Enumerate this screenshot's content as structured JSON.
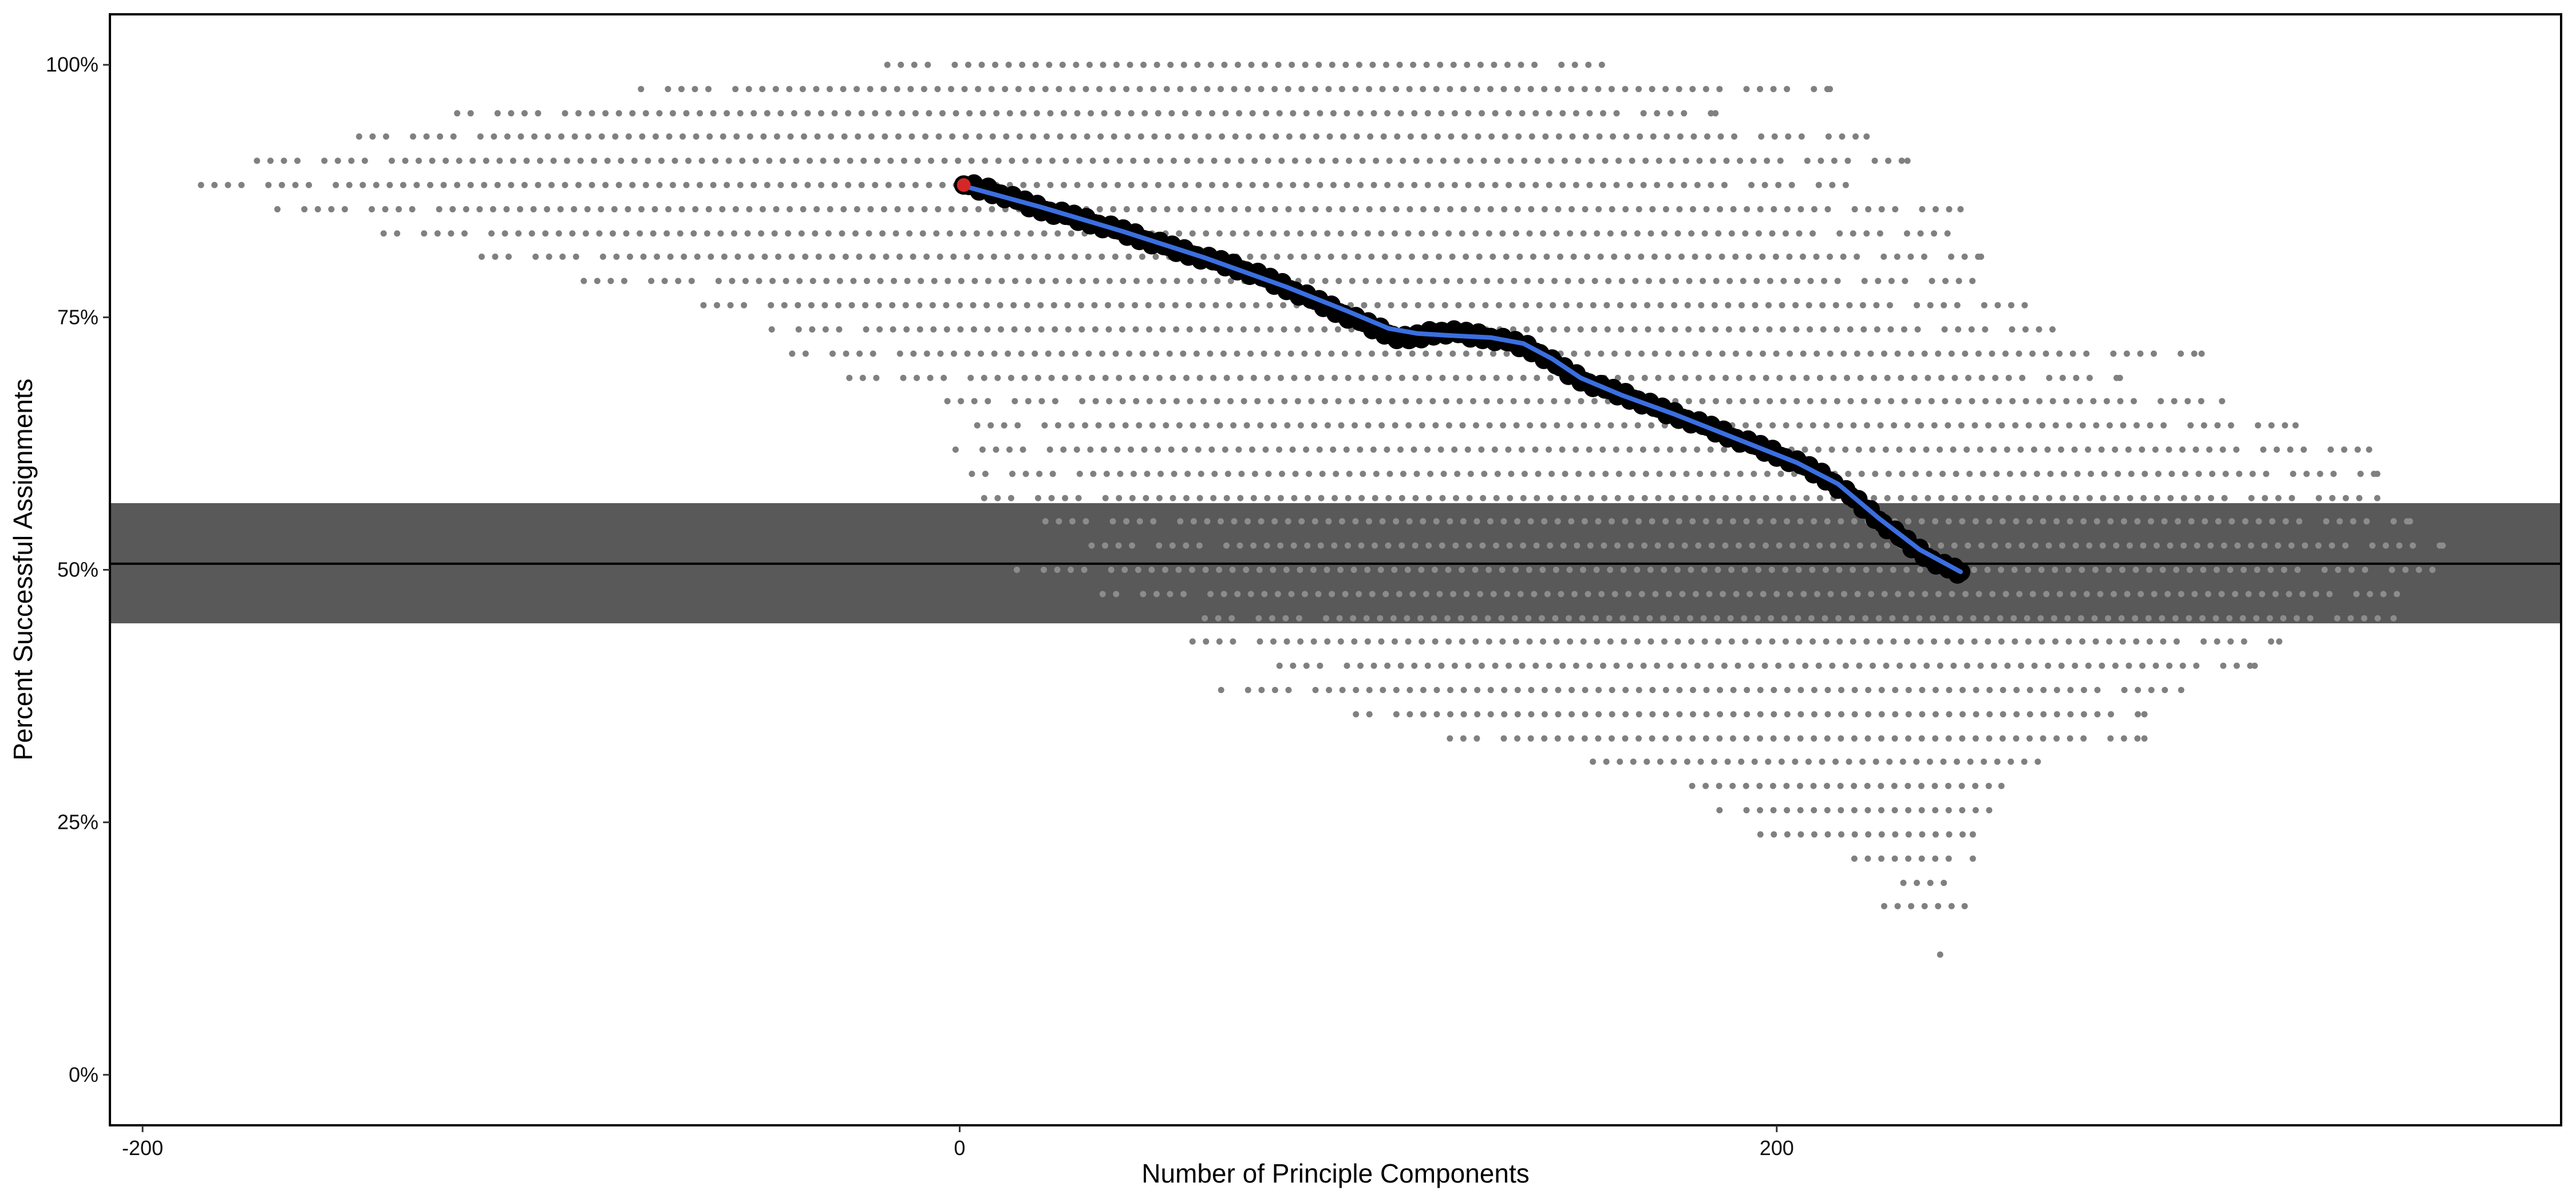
{
  "chart_data": {
    "type": "scatter",
    "xlabel": "Number of Principle Components",
    "ylabel": "Percent Successful Assignments",
    "xlim": [
      -208,
      392
    ],
    "ylim": [
      -5,
      105
    ],
    "x_ticks": [
      -200,
      0,
      200
    ],
    "x_tick_labels": [
      "-200",
      "0",
      "200"
    ],
    "y_ticks": [
      0,
      25,
      50,
      75,
      100
    ],
    "y_tick_labels": [
      "0%",
      "25%",
      "50%",
      "75%",
      "100%"
    ],
    "grid": false,
    "legend": "none",
    "reference_line": {
      "y": 50.6,
      "band": [
        44.7,
        56.6
      ],
      "band_color": "#595959",
      "line_color": "#000000"
    },
    "colors": {
      "background_dots": "#808080",
      "background_dots_in_band": "#8c8c8c",
      "path_points": "#000000",
      "smooth_line": "#3b6fe0",
      "start_point": "#d62728"
    },
    "background_rows": [
      {
        "y": 100,
        "xmin": -21,
        "xmax": 159
      },
      {
        "y": 97.6,
        "xmin": -78,
        "xmax": 213
      },
      {
        "y": 95.2,
        "xmin": -123,
        "xmax": 185
      },
      {
        "y": 92.9,
        "xmin": -147,
        "xmax": 222
      },
      {
        "y": 90.5,
        "xmin": -172,
        "xmax": 232
      },
      {
        "y": 88.1,
        "xmin": -189,
        "xmax": 217
      },
      {
        "y": 85.7,
        "xmin": -167,
        "xmax": 245
      },
      {
        "y": 83.3,
        "xmin": -141,
        "xmax": 245
      },
      {
        "y": 81.0,
        "xmin": -117,
        "xmax": 250
      },
      {
        "y": 78.6,
        "xmin": -92,
        "xmax": 250
      },
      {
        "y": 76.2,
        "xmin": -66,
        "xmax": 262
      },
      {
        "y": 73.8,
        "xmin": -46,
        "xmax": 269
      },
      {
        "y": 71.4,
        "xmin": -41,
        "xmax": 304
      },
      {
        "y": 69.0,
        "xmin": -27,
        "xmax": 284
      },
      {
        "y": 66.7,
        "xmin": -3,
        "xmax": 309
      },
      {
        "y": 64.3,
        "xmin": 1,
        "xmax": 327
      },
      {
        "y": 61.9,
        "xmin": -1,
        "xmax": 345
      },
      {
        "y": 59.5,
        "xmin": 3,
        "xmax": 347
      },
      {
        "y": 57.1,
        "xmin": 6,
        "xmax": 347
      },
      {
        "y": 54.8,
        "xmin": 21,
        "xmax": 355
      },
      {
        "y": 52.4,
        "xmin": 29,
        "xmax": 363
      },
      {
        "y": 50.0,
        "xmin": 14,
        "xmax": 361
      },
      {
        "y": 47.6,
        "xmin": 35,
        "xmax": 355
      },
      {
        "y": 45.2,
        "xmin": 60,
        "xmax": 351
      },
      {
        "y": 42.9,
        "xmin": 57,
        "xmax": 323
      },
      {
        "y": 40.5,
        "xmin": 75,
        "xmax": 317
      },
      {
        "y": 38.1,
        "xmin": 64,
        "xmax": 299
      },
      {
        "y": 35.7,
        "xmin": 97,
        "xmax": 290
      },
      {
        "y": 33.3,
        "xmin": 120,
        "xmax": 290
      },
      {
        "y": 31.0,
        "xmin": 155,
        "xmax": 267
      },
      {
        "y": 28.6,
        "xmin": 176,
        "xmax": 255
      },
      {
        "y": 26.2,
        "xmin": 186,
        "xmax": 253
      },
      {
        "y": 23.8,
        "xmin": 196,
        "xmax": 248
      },
      {
        "y": 21.4,
        "xmin": 219,
        "xmax": 248
      },
      {
        "y": 19.0,
        "xmin": 231,
        "xmax": 244
      },
      {
        "y": 16.7,
        "xmin": 223,
        "xmax": 246
      },
      {
        "y": 11.9,
        "xmin": 240,
        "xmax": 240
      }
    ],
    "path_points": [
      [
        1,
        88.1
      ],
      [
        6,
        87.7
      ],
      [
        10,
        87.2
      ],
      [
        14,
        86.6
      ],
      [
        18,
        86.0
      ],
      [
        22,
        85.5
      ],
      [
        26,
        85.1
      ],
      [
        30,
        84.7
      ],
      [
        34,
        84.2
      ],
      [
        38,
        83.7
      ],
      [
        42,
        83.2
      ],
      [
        46,
        82.6
      ],
      [
        50,
        82.1
      ],
      [
        54,
        81.6
      ],
      [
        58,
        81.1
      ],
      [
        62,
        80.6
      ],
      [
        66,
        80.2
      ],
      [
        70,
        79.6
      ],
      [
        74,
        79.0
      ],
      [
        78,
        78.3
      ],
      [
        82,
        77.6
      ],
      [
        86,
        76.8
      ],
      [
        90,
        76.1
      ],
      [
        94,
        75.3
      ],
      [
        98,
        74.6
      ],
      [
        102,
        73.9
      ],
      [
        106,
        73.2
      ],
      [
        110,
        72.8
      ],
      [
        114,
        73.3
      ],
      [
        118,
        73.6
      ],
      [
        122,
        73.4
      ],
      [
        126,
        73.2
      ],
      [
        130,
        73.0
      ],
      [
        134,
        72.6
      ],
      [
        138,
        72.2
      ],
      [
        142,
        71.4
      ],
      [
        146,
        70.3
      ],
      [
        150,
        69.3
      ],
      [
        154,
        68.5
      ],
      [
        158,
        67.9
      ],
      [
        162,
        67.4
      ],
      [
        166,
        66.8
      ],
      [
        170,
        66.1
      ],
      [
        174,
        65.5
      ],
      [
        178,
        64.9
      ],
      [
        182,
        64.3
      ],
      [
        186,
        63.7
      ],
      [
        190,
        63.0
      ],
      [
        194,
        62.4
      ],
      [
        198,
        61.8
      ],
      [
        202,
        61.1
      ],
      [
        206,
        60.4
      ],
      [
        210,
        59.6
      ],
      [
        214,
        58.6
      ],
      [
        218,
        57.3
      ],
      [
        222,
        56.0
      ],
      [
        226,
        54.6
      ],
      [
        230,
        53.3
      ],
      [
        234,
        52.1
      ],
      [
        238,
        51.0
      ],
      [
        242,
        50.1
      ],
      [
        245,
        49.8
      ]
    ],
    "smooth_line": [
      [
        1,
        88.0
      ],
      [
        20,
        85.9
      ],
      [
        40,
        83.5
      ],
      [
        60,
        80.9
      ],
      [
        80,
        78.0
      ],
      [
        95,
        75.6
      ],
      [
        105,
        73.9
      ],
      [
        112,
        73.4
      ],
      [
        120,
        73.2
      ],
      [
        130,
        73.0
      ],
      [
        138,
        72.4
      ],
      [
        145,
        70.9
      ],
      [
        152,
        69.0
      ],
      [
        162,
        67.3
      ],
      [
        175,
        65.4
      ],
      [
        190,
        63.0
      ],
      [
        205,
        60.6
      ],
      [
        215,
        58.5
      ],
      [
        225,
        55.1
      ],
      [
        235,
        52.0
      ],
      [
        245,
        49.8
      ]
    ],
    "start_point": [
      1,
      88.1
    ]
  }
}
